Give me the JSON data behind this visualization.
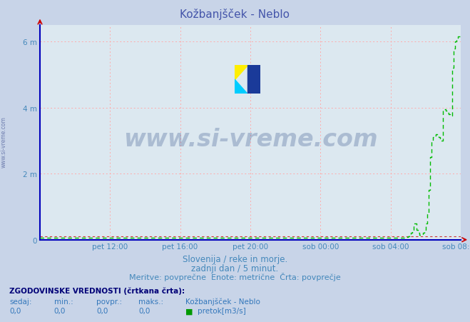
{
  "title": "Kožbanjšček - Neblo",
  "title_color": "#4455aa",
  "bg_color": "#c8d4e8",
  "plot_bg_color": "#dce8f0",
  "grid_color": "#ffaaaa",
  "xlim": [
    0,
    288
  ],
  "ylim": [
    0,
    6.5
  ],
  "yticks": [
    0,
    2,
    4,
    6
  ],
  "ylabel_labels": [
    "0",
    "2 m",
    "4 m",
    "6 m"
  ],
  "xtick_positions": [
    48,
    96,
    144,
    192,
    240,
    288
  ],
  "xtick_labels": [
    "pet 12:00",
    "pet 16:00",
    "pet 20:00",
    "sob 00:00",
    "sob 04:00",
    "sob 08:00"
  ],
  "line_color": "#00bb00",
  "avg_line_color": "#cc3333",
  "avg_line_y": 0.1,
  "watermark_text": "www.si-vreme.com",
  "watermark_color": "#1a3a7a",
  "watermark_alpha": 0.25,
  "subtitle1": "Slovenija / reke in morje.",
  "subtitle2": "zadnji dan / 5 minut.",
  "subtitle3": "Meritve: povprečne  Enote: metrične  Črta: povprečje",
  "subtitle_color": "#4488bb",
  "footer_label1": "ZGODOVINSKE VREDNOSTI (črtkana črta):",
  "footer_col_labels": [
    "sedaj:",
    "min.:",
    "povpr.:",
    "maks.:"
  ],
  "footer_station": "Kožbanjšček - Neblo",
  "footer_values": [
    "0,0",
    "0,0",
    "0,0",
    "0,0"
  ],
  "footer_unit": "pretok[m3/s]",
  "sidebar_text": "www.si-vreme.com",
  "data_x": [
    0,
    1,
    2,
    3,
    4,
    5,
    6,
    7,
    8,
    9,
    10,
    11,
    12,
    13,
    14,
    15,
    16,
    17,
    18,
    19,
    20,
    245,
    246,
    247,
    248,
    249,
    250,
    251,
    252,
    253,
    254,
    255,
    256,
    257,
    258,
    259,
    260,
    261,
    262,
    263,
    264,
    265,
    266,
    267,
    268,
    269,
    270,
    271,
    272,
    273,
    274,
    275,
    276,
    277,
    278,
    279,
    280,
    281,
    282,
    283,
    284,
    285,
    286,
    287,
    288
  ],
  "data_y": [
    0.05,
    0.05,
    0.05,
    0.05,
    0.05,
    0.05,
    0.05,
    0.05,
    0.05,
    0.05,
    0.05,
    0.05,
    0.05,
    0.05,
    0.05,
    0.05,
    0.05,
    0.05,
    0.05,
    0.05,
    0.05,
    0.05,
    0.05,
    0.05,
    0.05,
    0.05,
    0.05,
    0.08,
    0.1,
    0.15,
    0.2,
    0.3,
    0.5,
    0.5,
    0.3,
    0.2,
    0.15,
    0.15,
    0.2,
    0.3,
    0.5,
    0.8,
    1.5,
    2.5,
    3.0,
    3.1,
    3.15,
    3.2,
    3.15,
    3.1,
    3.05,
    3.0,
    3.95,
    3.95,
    3.9,
    3.85,
    3.8,
    3.75,
    5.2,
    5.8,
    6.0,
    6.1,
    6.15,
    6.15,
    6.15
  ]
}
